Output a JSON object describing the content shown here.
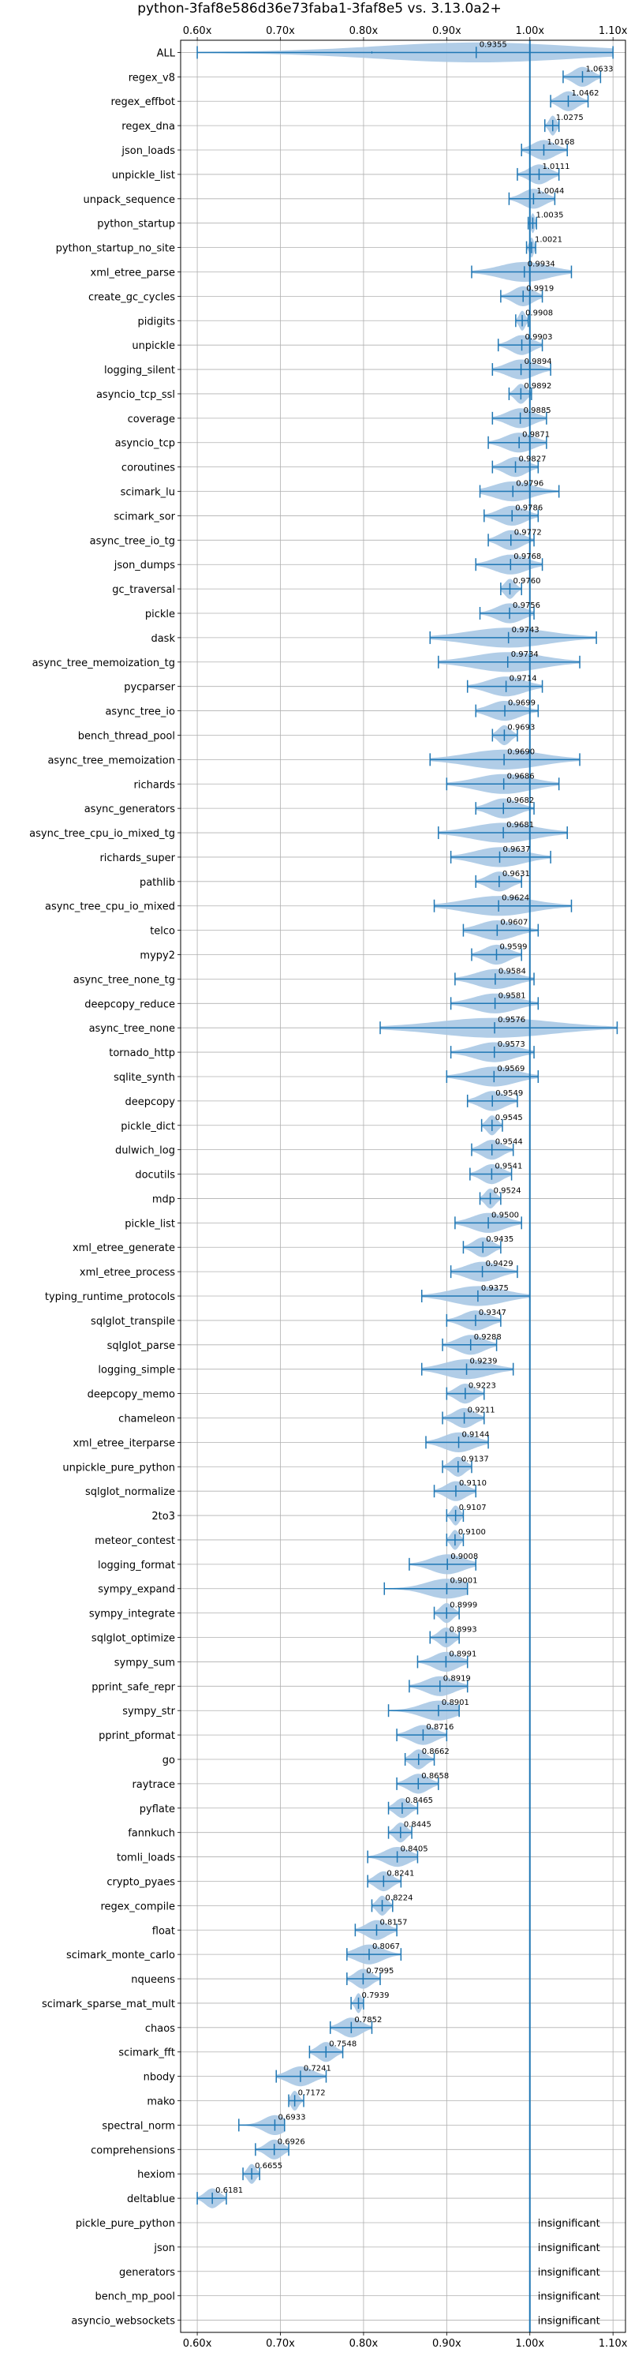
{
  "chart_data": {
    "type": "violin",
    "title": "python-3faf8e586d36e73faba1-3faf8e5 vs. 3.13.0a2+",
    "xlabel": "",
    "ylabel": "",
    "xlim": [
      0.58,
      1.115
    ],
    "reference_line": 1.0,
    "grid": true,
    "colors": {
      "violin": "#a9c8e4",
      "line": "#1f77b4",
      "grid": "#b0b0b0",
      "axis": "#000000"
    },
    "xticks": [
      {
        "value": 0.6,
        "label": "0.60x"
      },
      {
        "value": 0.7,
        "label": "0.70x"
      },
      {
        "value": 0.8,
        "label": "0.80x"
      },
      {
        "value": 0.9,
        "label": "0.90x"
      },
      {
        "value": 1.0,
        "label": "1.00x"
      },
      {
        "value": 1.1,
        "label": "1.10x"
      }
    ],
    "benchmarks": [
      {
        "name": "ALL",
        "value": 0.9355,
        "label": "0.9355",
        "low": 0.6,
        "high": 1.1,
        "q1": 0.81,
        "q3": 1.0
      },
      {
        "name": "regex_v8",
        "value": 1.0633,
        "label": "1.0633",
        "low": 1.04,
        "high": 1.085
      },
      {
        "name": "regex_effbot",
        "value": 1.0462,
        "label": "1.0462",
        "low": 1.025,
        "high": 1.07
      },
      {
        "name": "regex_dna",
        "value": 1.0275,
        "label": "1.0275",
        "low": 1.018,
        "high": 1.035
      },
      {
        "name": "json_loads",
        "value": 1.0168,
        "label": "1.0168",
        "low": 0.99,
        "high": 1.045
      },
      {
        "name": "unpickle_list",
        "value": 1.0111,
        "label": "1.0111",
        "low": 0.985,
        "high": 1.035
      },
      {
        "name": "unpack_sequence",
        "value": 1.0044,
        "label": "1.0044",
        "low": 0.975,
        "high": 1.03
      },
      {
        "name": "python_startup",
        "value": 1.0035,
        "label": "1.0035",
        "low": 0.998,
        "high": 1.008
      },
      {
        "name": "python_startup_no_site",
        "value": 1.0021,
        "label": "1.0021",
        "low": 0.996,
        "high": 1.007
      },
      {
        "name": "xml_etree_parse",
        "value": 0.9934,
        "label": "0.9934",
        "low": 0.93,
        "high": 1.05
      },
      {
        "name": "create_gc_cycles",
        "value": 0.9919,
        "label": "0.9919",
        "low": 0.965,
        "high": 1.015
      },
      {
        "name": "pidigits",
        "value": 0.9908,
        "label": "0.9908",
        "low": 0.983,
        "high": 0.998
      },
      {
        "name": "unpickle",
        "value": 0.9903,
        "label": "0.9903",
        "low": 0.962,
        "high": 1.015
      },
      {
        "name": "logging_silent",
        "value": 0.9894,
        "label": "0.9894",
        "low": 0.955,
        "high": 1.025
      },
      {
        "name": "asyncio_tcp_ssl",
        "value": 0.9892,
        "label": "0.9892",
        "low": 0.975,
        "high": 1.002
      },
      {
        "name": "coverage",
        "value": 0.9885,
        "label": "0.9885",
        "low": 0.955,
        "high": 1.02
      },
      {
        "name": "asyncio_tcp",
        "value": 0.9871,
        "label": "0.9871",
        "low": 0.95,
        "high": 1.02
      },
      {
        "name": "coroutines",
        "value": 0.9827,
        "label": "0.9827",
        "low": 0.955,
        "high": 1.01
      },
      {
        "name": "scimark_lu",
        "value": 0.9796,
        "label": "0.9796",
        "low": 0.94,
        "high": 1.035
      },
      {
        "name": "scimark_sor",
        "value": 0.9786,
        "label": "0.9786",
        "low": 0.945,
        "high": 1.01
      },
      {
        "name": "async_tree_io_tg",
        "value": 0.9772,
        "label": "0.9772",
        "low": 0.95,
        "high": 1.005
      },
      {
        "name": "json_dumps",
        "value": 0.9768,
        "label": "0.9768",
        "low": 0.935,
        "high": 1.015
      },
      {
        "name": "gc_traversal",
        "value": 0.976,
        "label": "0.9760",
        "low": 0.965,
        "high": 0.99
      },
      {
        "name": "pickle",
        "value": 0.9756,
        "label": "0.9756",
        "low": 0.94,
        "high": 1.005
      },
      {
        "name": "dask",
        "value": 0.9743,
        "label": "0.9743",
        "low": 0.88,
        "high": 1.08
      },
      {
        "name": "async_tree_memoization_tg",
        "value": 0.9734,
        "label": "0.9734",
        "low": 0.89,
        "high": 1.06
      },
      {
        "name": "pycparser",
        "value": 0.9714,
        "label": "0.9714",
        "low": 0.925,
        "high": 1.015
      },
      {
        "name": "async_tree_io",
        "value": 0.9699,
        "label": "0.9699",
        "low": 0.935,
        "high": 1.01
      },
      {
        "name": "bench_thread_pool",
        "value": 0.9693,
        "label": "0.9693",
        "low": 0.955,
        "high": 0.985
      },
      {
        "name": "async_tree_memoization",
        "value": 0.969,
        "label": "0.9690",
        "low": 0.88,
        "high": 1.06
      },
      {
        "name": "richards",
        "value": 0.9686,
        "label": "0.9686",
        "low": 0.9,
        "high": 1.035
      },
      {
        "name": "async_generators",
        "value": 0.9682,
        "label": "0.9682",
        "low": 0.935,
        "high": 1.005
      },
      {
        "name": "async_tree_cpu_io_mixed_tg",
        "value": 0.9681,
        "label": "0.9681",
        "low": 0.89,
        "high": 1.045
      },
      {
        "name": "richards_super",
        "value": 0.9637,
        "label": "0.9637",
        "low": 0.905,
        "high": 1.025
      },
      {
        "name": "pathlib",
        "value": 0.9631,
        "label": "0.9631",
        "low": 0.935,
        "high": 0.99
      },
      {
        "name": "async_tree_cpu_io_mixed",
        "value": 0.9624,
        "label": "0.9624",
        "low": 0.885,
        "high": 1.05
      },
      {
        "name": "telco",
        "value": 0.9607,
        "label": "0.9607",
        "low": 0.92,
        "high": 1.01
      },
      {
        "name": "mypy2",
        "value": 0.9599,
        "label": "0.9599",
        "low": 0.93,
        "high": 0.99
      },
      {
        "name": "async_tree_none_tg",
        "value": 0.9584,
        "label": "0.9584",
        "low": 0.91,
        "high": 1.005
      },
      {
        "name": "deepcopy_reduce",
        "value": 0.9581,
        "label": "0.9581",
        "low": 0.905,
        "high": 1.01
      },
      {
        "name": "async_tree_none",
        "value": 0.9576,
        "label": "0.9576",
        "low": 0.82,
        "high": 1.105
      },
      {
        "name": "tornado_http",
        "value": 0.9573,
        "label": "0.9573",
        "low": 0.905,
        "high": 1.005
      },
      {
        "name": "sqlite_synth",
        "value": 0.9569,
        "label": "0.9569",
        "low": 0.9,
        "high": 1.01
      },
      {
        "name": "deepcopy",
        "value": 0.9549,
        "label": "0.9549",
        "low": 0.925,
        "high": 0.985
      },
      {
        "name": "pickle_dict",
        "value": 0.9545,
        "label": "0.9545",
        "low": 0.942,
        "high": 0.967
      },
      {
        "name": "dulwich_log",
        "value": 0.9544,
        "label": "0.9544",
        "low": 0.93,
        "high": 0.98
      },
      {
        "name": "docutils",
        "value": 0.9541,
        "label": "0.9541",
        "low": 0.928,
        "high": 0.978
      },
      {
        "name": "mdp",
        "value": 0.9524,
        "label": "0.9524",
        "low": 0.94,
        "high": 0.965
      },
      {
        "name": "pickle_list",
        "value": 0.95,
        "label": "0.9500",
        "low": 0.91,
        "high": 0.99
      },
      {
        "name": "xml_etree_generate",
        "value": 0.9435,
        "label": "0.9435",
        "low": 0.92,
        "high": 0.965
      },
      {
        "name": "xml_etree_process",
        "value": 0.9429,
        "label": "0.9429",
        "low": 0.905,
        "high": 0.985
      },
      {
        "name": "typing_runtime_protocols",
        "value": 0.9375,
        "label": "0.9375",
        "low": 0.87,
        "high": 1.0
      },
      {
        "name": "sqlglot_transpile",
        "value": 0.9347,
        "label": "0.9347",
        "low": 0.9,
        "high": 0.965
      },
      {
        "name": "sqlglot_parse",
        "value": 0.9288,
        "label": "0.9288",
        "low": 0.895,
        "high": 0.96
      },
      {
        "name": "logging_simple",
        "value": 0.9239,
        "label": "0.9239",
        "low": 0.87,
        "high": 0.98
      },
      {
        "name": "deepcopy_memo",
        "value": 0.9223,
        "label": "0.9223",
        "low": 0.9,
        "high": 0.945
      },
      {
        "name": "chameleon",
        "value": 0.9211,
        "label": "0.9211",
        "low": 0.895,
        "high": 0.945
      },
      {
        "name": "xml_etree_iterparse",
        "value": 0.9144,
        "label": "0.9144",
        "low": 0.875,
        "high": 0.95
      },
      {
        "name": "unpickle_pure_python",
        "value": 0.9137,
        "label": "0.9137",
        "low": 0.895,
        "high": 0.93
      },
      {
        "name": "sqlglot_normalize",
        "value": 0.911,
        "label": "0.9110",
        "low": 0.885,
        "high": 0.935
      },
      {
        "name": "2to3",
        "value": 0.9107,
        "label": "0.9107",
        "low": 0.9,
        "high": 0.92
      },
      {
        "name": "meteor_contest",
        "value": 0.91,
        "label": "0.9100",
        "low": 0.9,
        "high": 0.92
      },
      {
        "name": "logging_format",
        "value": 0.9008,
        "label": "0.9008",
        "low": 0.855,
        "high": 0.935
      },
      {
        "name": "sympy_expand",
        "value": 0.9001,
        "label": "0.9001",
        "low": 0.825,
        "high": 0.925
      },
      {
        "name": "sympy_integrate",
        "value": 0.8999,
        "label": "0.8999",
        "low": 0.885,
        "high": 0.915
      },
      {
        "name": "sqlglot_optimize",
        "value": 0.8993,
        "label": "0.8993",
        "low": 0.88,
        "high": 0.915
      },
      {
        "name": "sympy_sum",
        "value": 0.8991,
        "label": "0.8991",
        "low": 0.865,
        "high": 0.925
      },
      {
        "name": "pprint_safe_repr",
        "value": 0.8919,
        "label": "0.8919",
        "low": 0.855,
        "high": 0.925
      },
      {
        "name": "sympy_str",
        "value": 0.8901,
        "label": "0.8901",
        "low": 0.83,
        "high": 0.915
      },
      {
        "name": "pprint_pformat",
        "value": 0.8716,
        "label": "0.8716",
        "low": 0.84,
        "high": 0.9
      },
      {
        "name": "go",
        "value": 0.8662,
        "label": "0.8662",
        "low": 0.85,
        "high": 0.885
      },
      {
        "name": "raytrace",
        "value": 0.8658,
        "label": "0.8658",
        "low": 0.84,
        "high": 0.89
      },
      {
        "name": "pyflate",
        "value": 0.8465,
        "label": "0.8465",
        "low": 0.83,
        "high": 0.865
      },
      {
        "name": "fannkuch",
        "value": 0.8445,
        "label": "0.8445",
        "low": 0.83,
        "high": 0.858
      },
      {
        "name": "tomli_loads",
        "value": 0.8405,
        "label": "0.8405",
        "low": 0.805,
        "high": 0.865
      },
      {
        "name": "crypto_pyaes",
        "value": 0.8241,
        "label": "0.8241",
        "low": 0.805,
        "high": 0.845
      },
      {
        "name": "regex_compile",
        "value": 0.8224,
        "label": "0.8224",
        "low": 0.81,
        "high": 0.835
      },
      {
        "name": "float",
        "value": 0.8157,
        "label": "0.8157",
        "low": 0.79,
        "high": 0.84
      },
      {
        "name": "scimark_monte_carlo",
        "value": 0.8067,
        "label": "0.8067",
        "low": 0.78,
        "high": 0.845
      },
      {
        "name": "nqueens",
        "value": 0.7995,
        "label": "0.7995",
        "low": 0.78,
        "high": 0.82
      },
      {
        "name": "scimark_sparse_mat_mult",
        "value": 0.7939,
        "label": "0.7939",
        "low": 0.785,
        "high": 0.8
      },
      {
        "name": "chaos",
        "value": 0.7852,
        "label": "0.7852",
        "low": 0.76,
        "high": 0.81
      },
      {
        "name": "scimark_fft",
        "value": 0.7548,
        "label": "0.7548",
        "low": 0.735,
        "high": 0.775
      },
      {
        "name": "nbody",
        "value": 0.7241,
        "label": "0.7241",
        "low": 0.695,
        "high": 0.755
      },
      {
        "name": "mako",
        "value": 0.7172,
        "label": "0.7172",
        "low": 0.71,
        "high": 0.728
      },
      {
        "name": "spectral_norm",
        "value": 0.6933,
        "label": "0.6933",
        "low": 0.65,
        "high": 0.705
      },
      {
        "name": "comprehensions",
        "value": 0.6926,
        "label": "0.6926",
        "low": 0.67,
        "high": 0.71
      },
      {
        "name": "hexiom",
        "value": 0.6655,
        "label": "0.6655",
        "low": 0.655,
        "high": 0.675
      },
      {
        "name": "deltablue",
        "value": 0.6181,
        "label": "0.6181",
        "low": 0.6,
        "high": 0.635
      },
      {
        "name": "pickle_pure_python",
        "value": null,
        "label": "insignificant"
      },
      {
        "name": "json",
        "value": null,
        "label": "insignificant"
      },
      {
        "name": "generators",
        "value": null,
        "label": "insignificant"
      },
      {
        "name": "bench_mp_pool",
        "value": null,
        "label": "insignificant"
      },
      {
        "name": "asyncio_websockets",
        "value": null,
        "label": "insignificant"
      }
    ]
  }
}
